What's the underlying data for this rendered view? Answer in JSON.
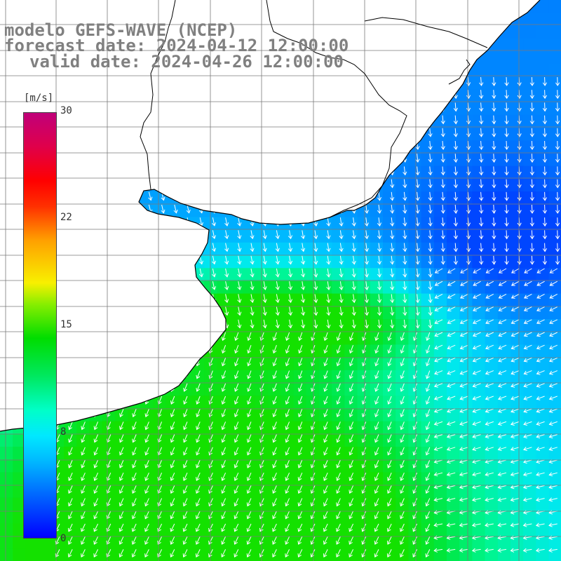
{
  "header": {
    "line1": "modelo GEFS-WAVE (NCEP)",
    "line2": "forecast date: 2024-04-12 12:00:00",
    "line3": "valid date: 2024-04-26 12:00:00"
  },
  "colorbar": {
    "unit": "[m/s]",
    "ticks": [
      "30",
      "22",
      "15",
      "8",
      "0"
    ],
    "range": [
      0,
      30
    ],
    "colors": [
      "#0000ff",
      "#00b8ff",
      "#00ffc8",
      "#00dd00",
      "#f8f000",
      "#ff3000",
      "#c0007a"
    ]
  },
  "map": {
    "ocean_base_color": "#1a8cff",
    "land_color": "#ffffff",
    "grid_color": "#7a7a7a",
    "coast_color": "#000000",
    "arrow_color": "#ffffff"
  }
}
